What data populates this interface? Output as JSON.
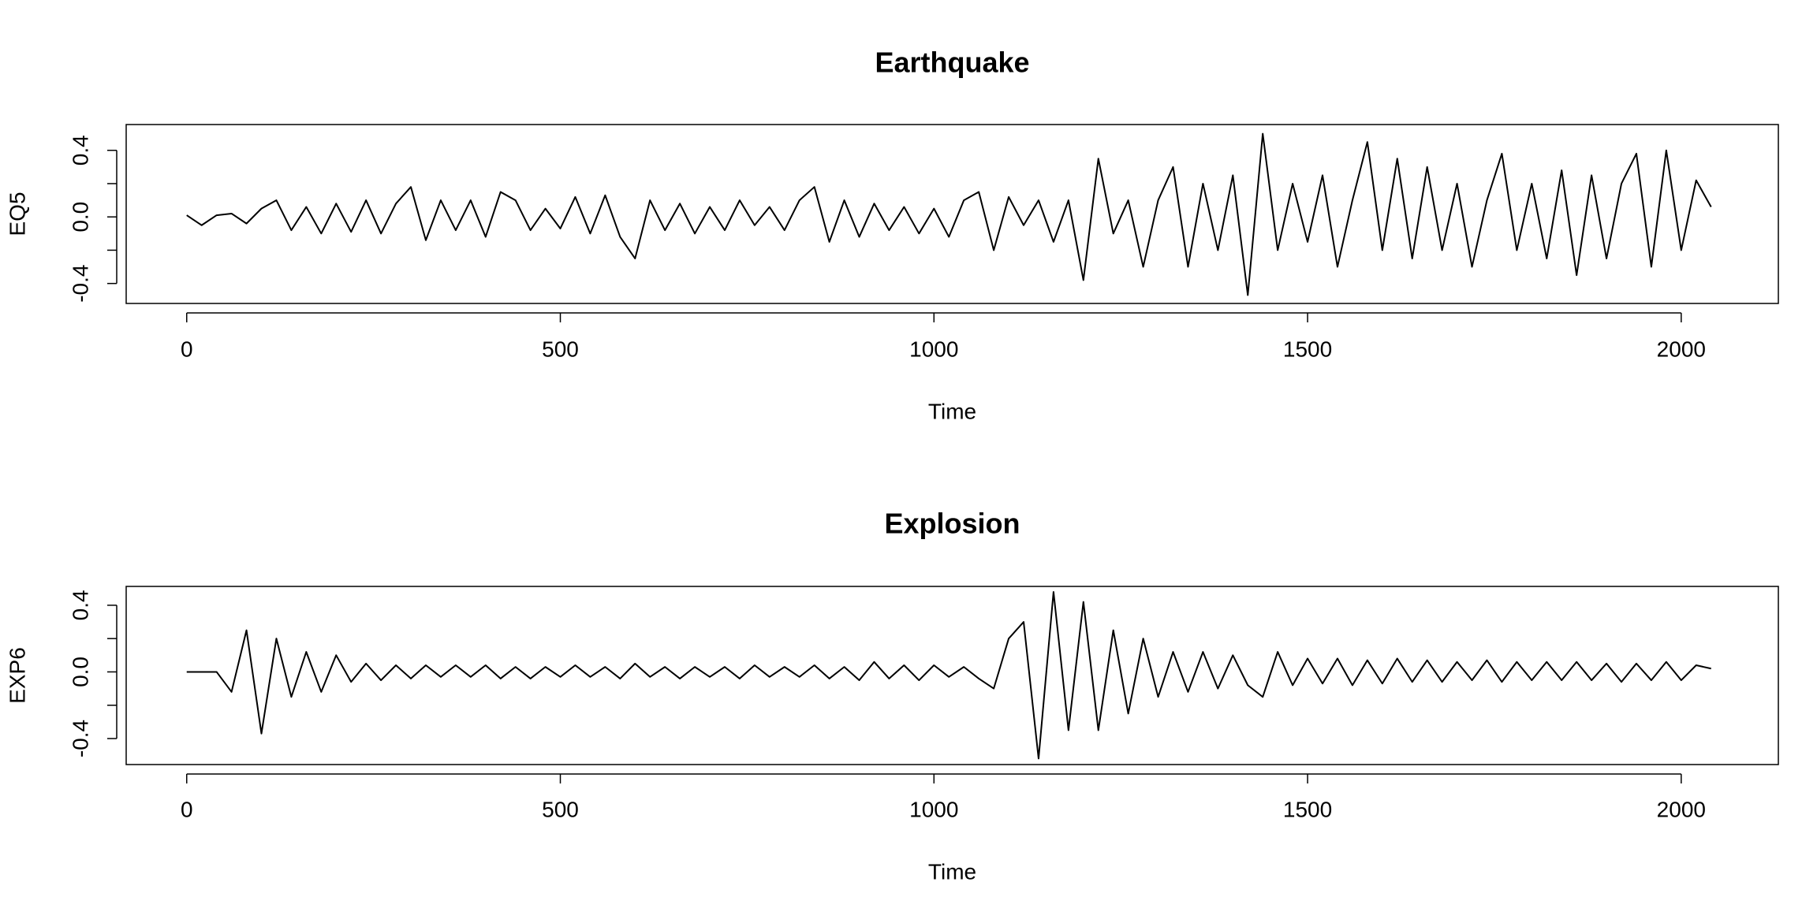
{
  "chart_data": [
    {
      "type": "line",
      "title": "Earthquake",
      "xlabel": "Time",
      "ylabel": "EQ5",
      "x": [
        0,
        20,
        40,
        60,
        80,
        100,
        120,
        140,
        160,
        180,
        200,
        220,
        240,
        260,
        280,
        300,
        320,
        340,
        360,
        380,
        400,
        420,
        440,
        460,
        480,
        500,
        520,
        540,
        560,
        580,
        600,
        620,
        640,
        660,
        680,
        700,
        720,
        740,
        760,
        780,
        800,
        820,
        840,
        860,
        880,
        900,
        920,
        940,
        960,
        980,
        1000,
        1020,
        1040,
        1060,
        1080,
        1100,
        1120,
        1140,
        1160,
        1180,
        1200,
        1220,
        1240,
        1260,
        1280,
        1300,
        1320,
        1340,
        1360,
        1380,
        1400,
        1420,
        1440,
        1460,
        1480,
        1500,
        1520,
        1540,
        1560,
        1580,
        1600,
        1620,
        1640,
        1660,
        1680,
        1700,
        1720,
        1740,
        1760,
        1780,
        1800,
        1820,
        1840,
        1860,
        1880,
        1900,
        1920,
        1940,
        1960,
        1980,
        2000,
        2020,
        2040
      ],
      "series": [
        {
          "name": "EQ5",
          "color": "#000000",
          "values": [
            0.01,
            -0.05,
            0.01,
            0.02,
            -0.04,
            0.05,
            0.1,
            -0.08,
            0.06,
            -0.1,
            0.08,
            -0.09,
            0.1,
            -0.1,
            0.08,
            0.18,
            -0.14,
            0.1,
            -0.08,
            0.1,
            -0.12,
            0.15,
            0.1,
            -0.08,
            0.05,
            -0.07,
            0.12,
            -0.1,
            0.13,
            -0.12,
            -0.25,
            0.1,
            -0.08,
            0.08,
            -0.1,
            0.06,
            -0.08,
            0.1,
            -0.05,
            0.06,
            -0.08,
            0.1,
            0.18,
            -0.15,
            0.1,
            -0.12,
            0.08,
            -0.08,
            0.06,
            -0.1,
            0.05,
            -0.12,
            0.1,
            0.15,
            -0.2,
            0.12,
            -0.05,
            0.1,
            -0.15,
            0.1,
            -0.38,
            0.35,
            -0.1,
            0.1,
            -0.3,
            0.1,
            0.3,
            -0.3,
            0.2,
            -0.2,
            0.25,
            -0.47,
            0.5,
            -0.2,
            0.2,
            -0.15,
            0.25,
            -0.3,
            0.1,
            0.45,
            -0.2,
            0.35,
            -0.25,
            0.3,
            -0.2,
            0.2,
            -0.3,
            0.1,
            0.38,
            -0.2,
            0.2,
            -0.25,
            0.28,
            -0.35,
            0.25,
            -0.25,
            0.2,
            0.38,
            -0.3,
            0.4,
            -0.2,
            0.22,
            0.06
          ]
        }
      ],
      "xlim": [
        -81,
        2130
      ],
      "xticks": [
        0,
        500,
        1000,
        1500,
        2000
      ],
      "ylim": [
        -0.52,
        0.555
      ],
      "yticks": [
        -0.4,
        {
          "value": -0.2,
          "label": null
        },
        {
          "value": 0,
          "label": "0.0"
        },
        {
          "value": 0.2,
          "label": null
        },
        0.4
      ]
    },
    {
      "type": "line",
      "title": "Explosion",
      "xlabel": "Time",
      "ylabel": "EXP6",
      "x": [
        0,
        20,
        40,
        60,
        80,
        100,
        120,
        140,
        160,
        180,
        200,
        220,
        240,
        260,
        280,
        300,
        320,
        340,
        360,
        380,
        400,
        420,
        440,
        460,
        480,
        500,
        520,
        540,
        560,
        580,
        600,
        620,
        640,
        660,
        680,
        700,
        720,
        740,
        760,
        780,
        800,
        820,
        840,
        860,
        880,
        900,
        920,
        940,
        960,
        980,
        1000,
        1020,
        1040,
        1060,
        1080,
        1100,
        1120,
        1140,
        1160,
        1180,
        1200,
        1220,
        1240,
        1260,
        1280,
        1300,
        1320,
        1340,
        1360,
        1380,
        1400,
        1420,
        1440,
        1460,
        1480,
        1500,
        1520,
        1540,
        1560,
        1580,
        1600,
        1620,
        1640,
        1660,
        1680,
        1700,
        1720,
        1740,
        1760,
        1780,
        1800,
        1820,
        1840,
        1860,
        1880,
        1900,
        1920,
        1940,
        1960,
        1980,
        2000,
        2020,
        2040
      ],
      "series": [
        {
          "name": "EXP6",
          "color": "#000000",
          "values": [
            0,
            0,
            0,
            -0.12,
            0.25,
            -0.37,
            0.2,
            -0.15,
            0.12,
            -0.12,
            0.1,
            -0.06,
            0.05,
            -0.05,
            0.04,
            -0.04,
            0.04,
            -0.03,
            0.04,
            -0.03,
            0.04,
            -0.04,
            0.03,
            -0.04,
            0.03,
            -0.03,
            0.04,
            -0.03,
            0.03,
            -0.04,
            0.05,
            -0.03,
            0.03,
            -0.04,
            0.03,
            -0.03,
            0.03,
            -0.04,
            0.04,
            -0.03,
            0.03,
            -0.03,
            0.04,
            -0.04,
            0.03,
            -0.05,
            0.06,
            -0.04,
            0.04,
            -0.05,
            0.04,
            -0.03,
            0.03,
            -0.04,
            -0.1,
            0.2,
            0.3,
            -0.52,
            0.48,
            -0.35,
            0.42,
            -0.35,
            0.25,
            -0.25,
            0.2,
            -0.15,
            0.12,
            -0.12,
            0.12,
            -0.1,
            0.1,
            -0.08,
            -0.15,
            0.12,
            -0.08,
            0.08,
            -0.07,
            0.08,
            -0.08,
            0.07,
            -0.07,
            0.08,
            -0.06,
            0.07,
            -0.06,
            0.06,
            -0.05,
            0.07,
            -0.06,
            0.06,
            -0.05,
            0.06,
            -0.05,
            0.06,
            -0.05,
            0.05,
            -0.06,
            0.05,
            -0.05,
            0.06,
            -0.05,
            0.04,
            0.02
          ]
        }
      ],
      "xlim": [
        -81,
        2130
      ],
      "xticks": [
        0,
        500,
        1000,
        1500,
        2000
      ],
      "ylim": [
        -0.556,
        0.513
      ],
      "yticks": [
        -0.4,
        {
          "value": -0.2,
          "label": null
        },
        {
          "value": 0,
          "label": "0.0"
        },
        {
          "value": 0.2,
          "label": null
        },
        0.4
      ]
    }
  ]
}
